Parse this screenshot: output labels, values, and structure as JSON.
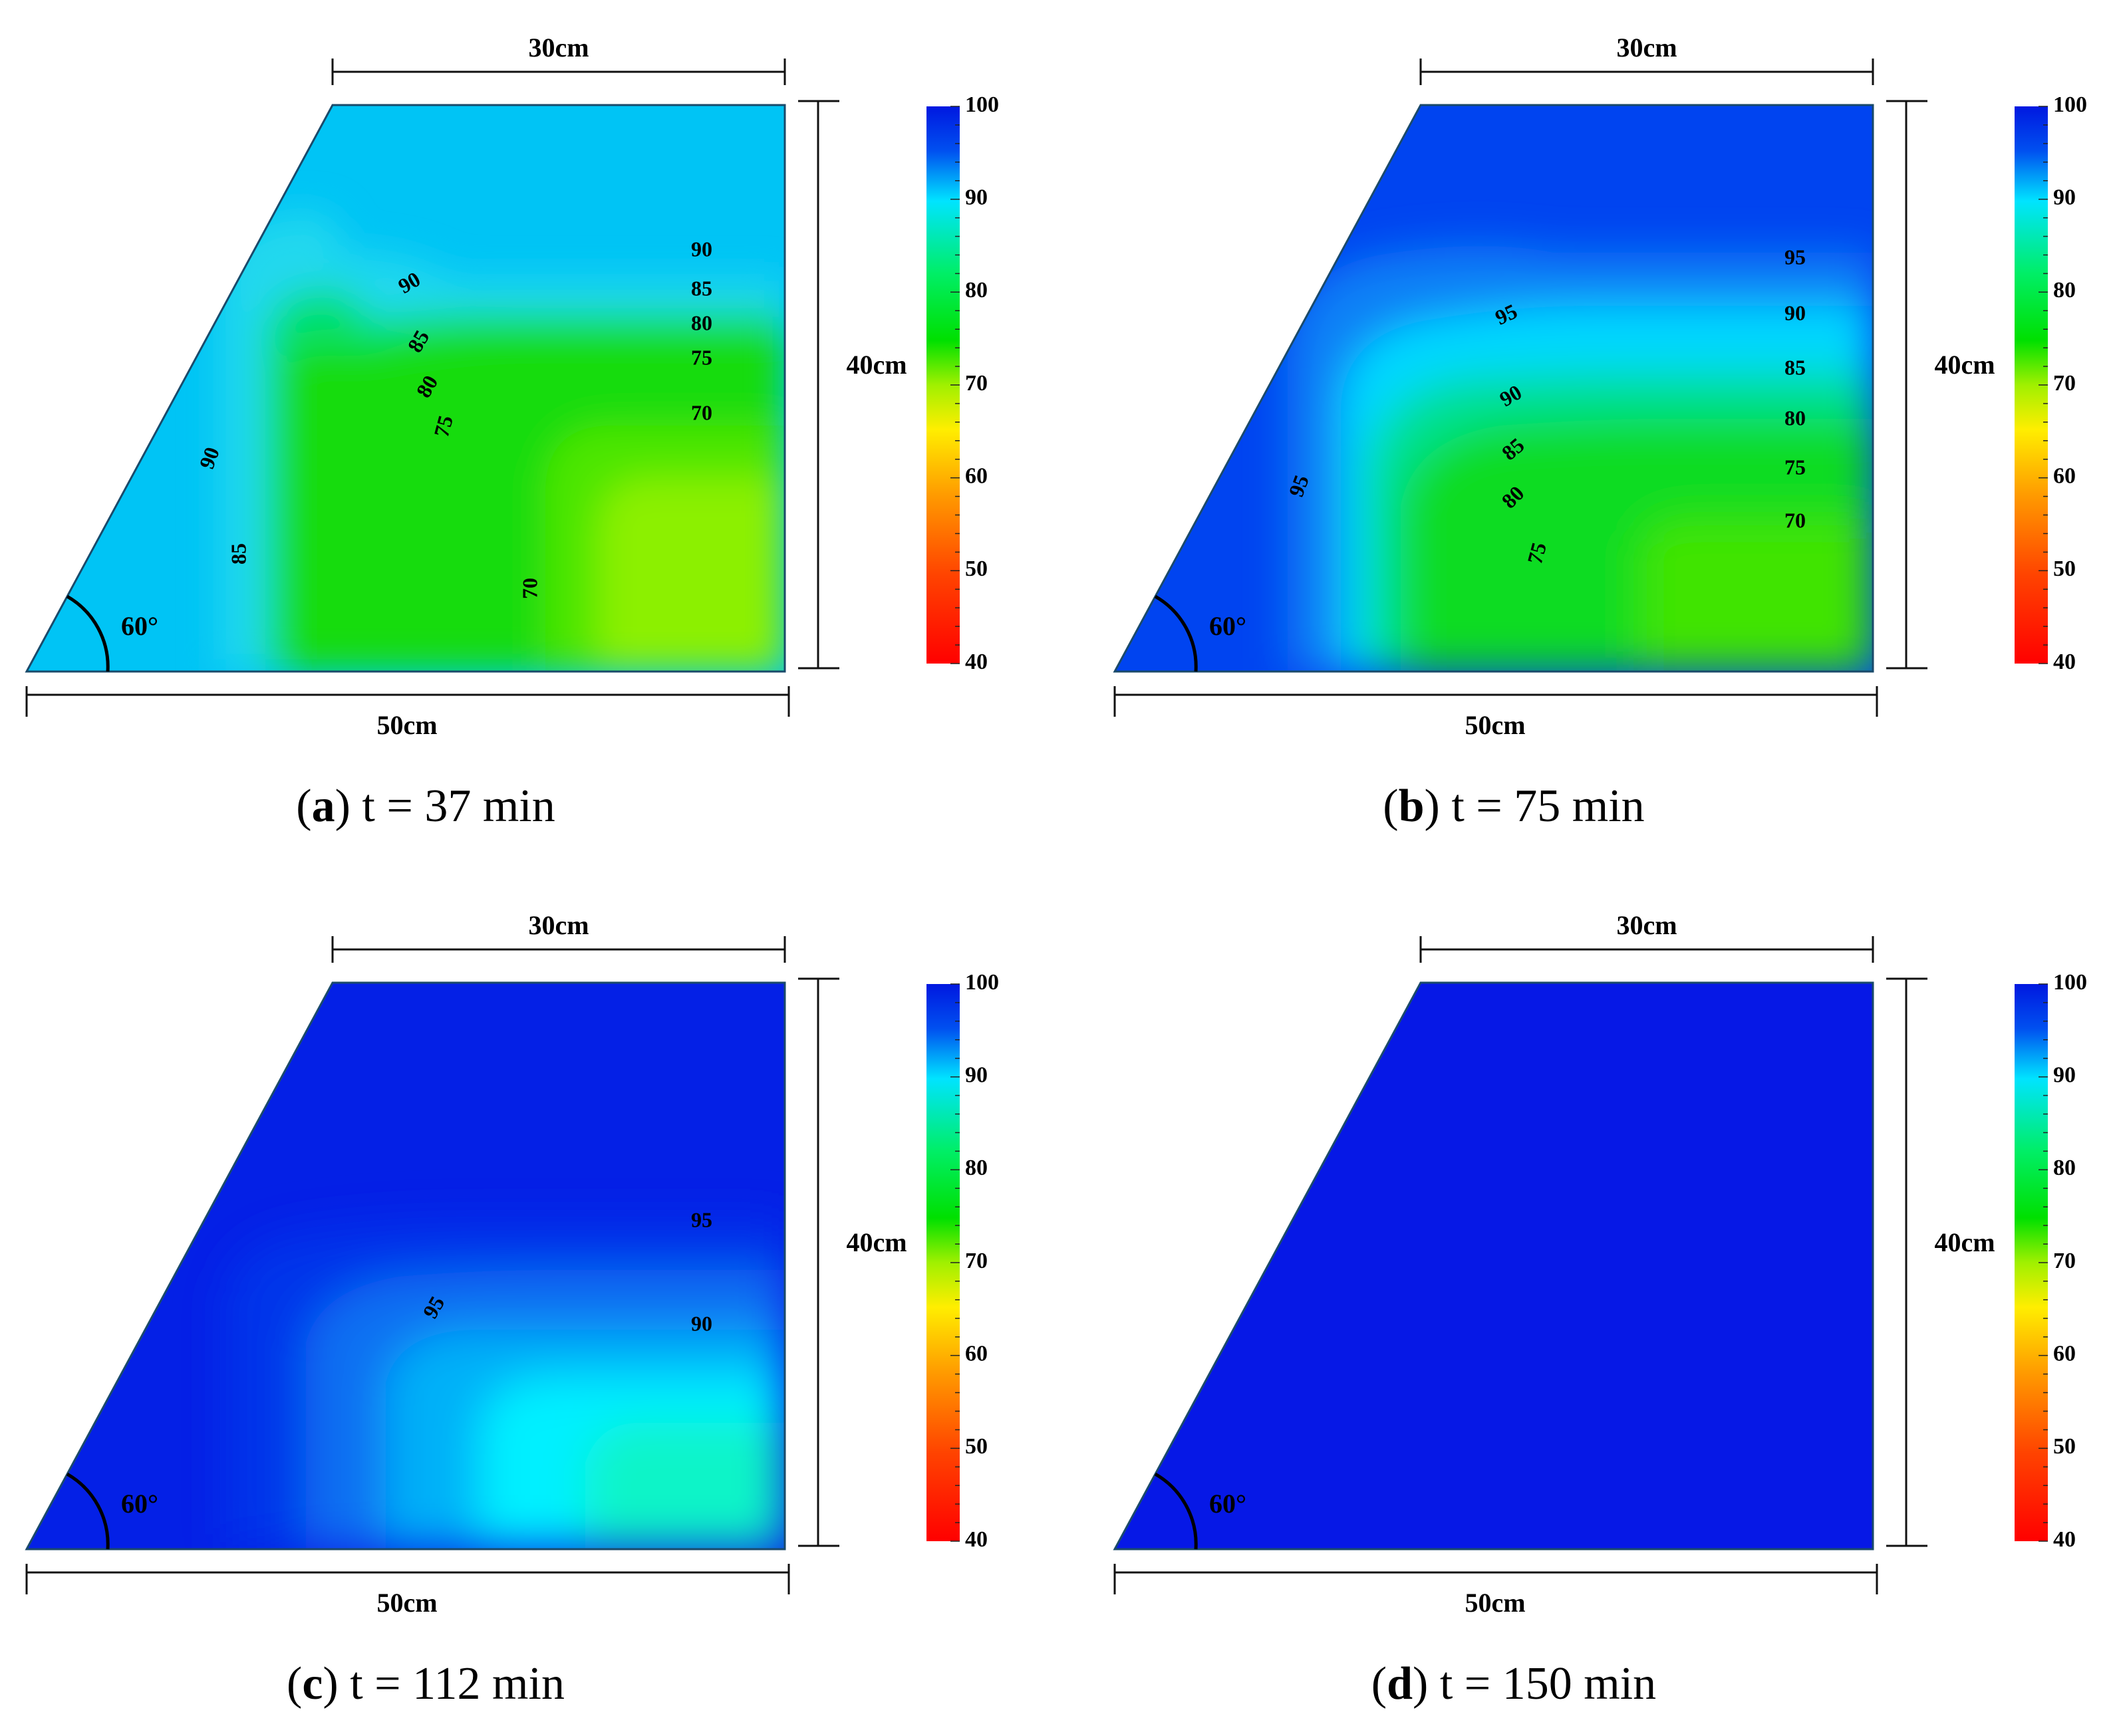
{
  "chart_data": [
    {
      "type": "heatmap",
      "caption": {
        "letter": "a",
        "text": "t = 37 min"
      },
      "dimensions": {
        "top": "30cm",
        "right": "40cm",
        "bottom": "50cm",
        "angle": "60°"
      },
      "colorbar": {
        "ticks": [
          "100",
          "90",
          "80",
          "70",
          "60",
          "50",
          "40"
        ],
        "range": [
          40,
          100
        ]
      },
      "contour_labels": [
        {
          "text": "90"
        },
        {
          "text": "85"
        },
        {
          "text": "80"
        },
        {
          "text": "75"
        },
        {
          "text": "70"
        },
        {
          "text": "90"
        },
        {
          "text": "85"
        },
        {
          "text": "80"
        },
        {
          "text": "75"
        },
        {
          "text": "90"
        },
        {
          "text": "85"
        },
        {
          "text": "70"
        }
      ]
    },
    {
      "type": "heatmap",
      "caption": {
        "letter": "b",
        "text": "t = 75 min"
      },
      "dimensions": {
        "top": "30cm",
        "right": "40cm",
        "bottom": "50cm",
        "angle": "60°"
      },
      "colorbar": {
        "ticks": [
          "100",
          "90",
          "80",
          "70",
          "60",
          "50",
          "40"
        ],
        "range": [
          40,
          100
        ]
      },
      "contour_labels": [
        {
          "text": "95"
        },
        {
          "text": "90"
        },
        {
          "text": "85"
        },
        {
          "text": "80"
        },
        {
          "text": "75"
        },
        {
          "text": "70"
        },
        {
          "text": "95"
        },
        {
          "text": "90"
        },
        {
          "text": "85"
        },
        {
          "text": "80"
        },
        {
          "text": "75"
        },
        {
          "text": "95"
        }
      ]
    },
    {
      "type": "heatmap",
      "caption": {
        "letter": "c",
        "text": "t = 112 min"
      },
      "dimensions": {
        "top": "30cm",
        "right": "40cm",
        "bottom": "50cm",
        "angle": "60°"
      },
      "colorbar": {
        "ticks": [
          "100",
          "90",
          "80",
          "70",
          "60",
          "50",
          "40"
        ],
        "range": [
          40,
          100
        ]
      },
      "contour_labels": [
        {
          "text": "95"
        },
        {
          "text": "90"
        },
        {
          "text": "95"
        }
      ]
    },
    {
      "type": "heatmap",
      "caption": {
        "letter": "d",
        "text": "t = 150 min"
      },
      "dimensions": {
        "top": "30cm",
        "right": "40cm",
        "bottom": "50cm",
        "angle": "60°"
      },
      "colorbar": {
        "ticks": [
          "100",
          "90",
          "80",
          "70",
          "60",
          "50",
          "40"
        ],
        "range": [
          40,
          100
        ]
      },
      "contour_labels": []
    }
  ]
}
